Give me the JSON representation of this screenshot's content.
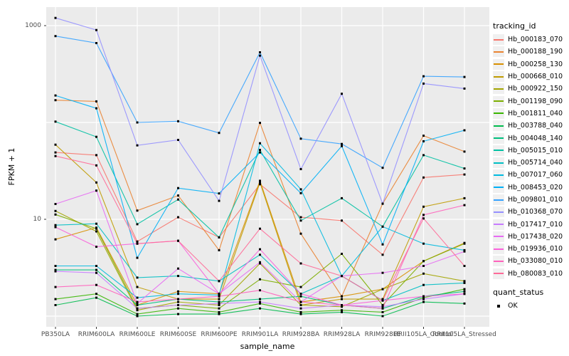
{
  "figure": {
    "background": "#FFFFFF",
    "panel_background": "#EBEBEB",
    "grid_color": "#FFFFFF",
    "axis_text_color": "#4D4D4D",
    "point_color": "#000000"
  },
  "axes": {
    "x_label": "sample_name",
    "y_label": "FPKM + 1",
    "y_tick_labels": [
      "1000",
      "10"
    ],
    "y_tick_values": [
      1000,
      10
    ],
    "y_gridline_values": [
      1,
      10,
      100,
      1000
    ]
  },
  "legend": {
    "tracking_title": "tracking_id",
    "quant_title": "quant_status",
    "quant_items": [
      {
        "label": "OK"
      }
    ]
  },
  "chart_data": {
    "type": "line",
    "title": "",
    "xlabel": "sample_name",
    "ylabel": "FPKM + 1",
    "y_scale": "log10",
    "ylim": [
      0.8,
      1560
    ],
    "grid": true,
    "legend_position": "right",
    "x_categories": [
      "PB350LA",
      "RRIM600LA",
      "RRIM600LE",
      "RRIM600SE",
      "RRIM600PE",
      "RRIM901LA",
      "RRIM928BA",
      "RRIM928LA",
      "RRIM928LE",
      "RRII105LA_Control",
      "RRII105LA_Stressed"
    ],
    "series": [
      {
        "name": "Hb_000183_070",
        "color": "#F8766D",
        "values": [
          49,
          46,
          5.9,
          10.5,
          6.5,
          23,
          10.5,
          9.7,
          4.3,
          27,
          29
        ]
      },
      {
        "name": "Hb_000188_190",
        "color": "#EA8331",
        "values": [
          170,
          165,
          12.3,
          17.6,
          4.8,
          99,
          7.1,
          1.6,
          14.5,
          73,
          50
        ]
      },
      {
        "name": "Hb_000258_130",
        "color": "#D89000",
        "values": [
          6.2,
          8.2,
          1.3,
          1.8,
          1.7,
          25,
          1.4,
          1.6,
          1.9,
          3.7,
          5.7
        ]
      },
      {
        "name": "Hb_000668_010",
        "color": "#C09B00",
        "values": [
          59,
          24,
          2.0,
          1.5,
          1.5,
          24,
          1.3,
          1.5,
          1.5,
          13.5,
          16.5
        ]
      },
      {
        "name": "Hb_000922_150",
        "color": "#A3A500",
        "values": [
          12.2,
          7.5,
          1.15,
          1.4,
          1.3,
          3.5,
          1.3,
          1.25,
          1.9,
          2.75,
          2.3
        ]
      },
      {
        "name": "Hb_001198_090",
        "color": "#7CAE00",
        "values": [
          11.2,
          8.0,
          1.2,
          1.3,
          1.2,
          2.4,
          2.0,
          4.4,
          1.3,
          3.7,
          5.6
        ]
      },
      {
        "name": "Hb_001811_040",
        "color": "#39B600",
        "values": [
          1.5,
          1.7,
          1.05,
          1.2,
          1.1,
          1.35,
          1.1,
          1.15,
          1.1,
          1.55,
          1.9
        ]
      },
      {
        "name": "Hb_003788_040",
        "color": "#00BB4E",
        "values": [
          1.3,
          1.55,
          1.0,
          1.05,
          1.05,
          1.2,
          1.05,
          1.1,
          1.0,
          1.4,
          1.35
        ]
      },
      {
        "name": "Hb_004048_140",
        "color": "#00BF7D",
        "values": [
          3.0,
          3.0,
          1.3,
          1.5,
          1.4,
          1.5,
          1.6,
          1.3,
          1.2,
          1.6,
          1.8
        ]
      },
      {
        "name": "Hb_005015_010",
        "color": "#00C1A3",
        "values": [
          102,
          71,
          8.9,
          16,
          6.5,
          52,
          9.7,
          16.5,
          8.4,
          46,
          33.5
        ]
      },
      {
        "name": "Hb_005714_040",
        "color": "#00BFC4",
        "values": [
          8.7,
          9.0,
          2.5,
          2.6,
          2.3,
          4.3,
          1.7,
          2.6,
          1.45,
          2.1,
          2.2
        ]
      },
      {
        "name": "Hb_007017_060",
        "color": "#00BAE0",
        "values": [
          3.3,
          3.3,
          1.55,
          1.7,
          1.65,
          61,
          20.4,
          2.6,
          8.4,
          5.6,
          4.8
        ]
      },
      {
        "name": "Hb_008453_020",
        "color": "#00B0F6",
        "values": [
          190,
          140,
          4.0,
          21,
          18.5,
          49,
          18.6,
          57,
          5.5,
          64,
          83
        ]
      },
      {
        "name": "Hb_009801_010",
        "color": "#35A2FF",
        "values": [
          780,
          660,
          100,
          103,
          78,
          530,
          68,
          60,
          34,
          300,
          295
        ]
      },
      {
        "name": "Hb_010368_070",
        "color": "#9590FF",
        "values": [
          1200,
          900,
          58,
          66,
          15.5,
          490,
          33,
          198,
          14.5,
          252,
          224
        ]
      },
      {
        "name": "Hb_017417_010",
        "color": "#C77CFF",
        "values": [
          2.9,
          2.8,
          1.2,
          1.3,
          1.35,
          1.4,
          1.2,
          1.3,
          1.25,
          1.5,
          1.7
        ]
      },
      {
        "name": "Hb_017438_020",
        "color": "#E76BF3",
        "values": [
          14.4,
          19.8,
          1.35,
          3.1,
          1.7,
          3.6,
          1.4,
          2.6,
          2.8,
          3.3,
          4.65
        ]
      },
      {
        "name": "Hb_019936_010",
        "color": "#FA62DB",
        "values": [
          8.3,
          5.2,
          5.6,
          6.0,
          1.7,
          4.9,
          1.7,
          1.3,
          1.45,
          1.6,
          1.7
        ]
      },
      {
        "name": "Hb_033080_010",
        "color": "#FF62BC",
        "values": [
          2.0,
          2.1,
          1.4,
          1.5,
          1.6,
          1.85,
          1.4,
          1.3,
          1.2,
          11.1,
          14.0
        ]
      },
      {
        "name": "Hb_080083_010",
        "color": "#FF6A98",
        "values": [
          45,
          36,
          5.6,
          6.0,
          2.3,
          8.0,
          3.5,
          2.6,
          1.45,
          10.2,
          3.3
        ]
      }
    ]
  }
}
